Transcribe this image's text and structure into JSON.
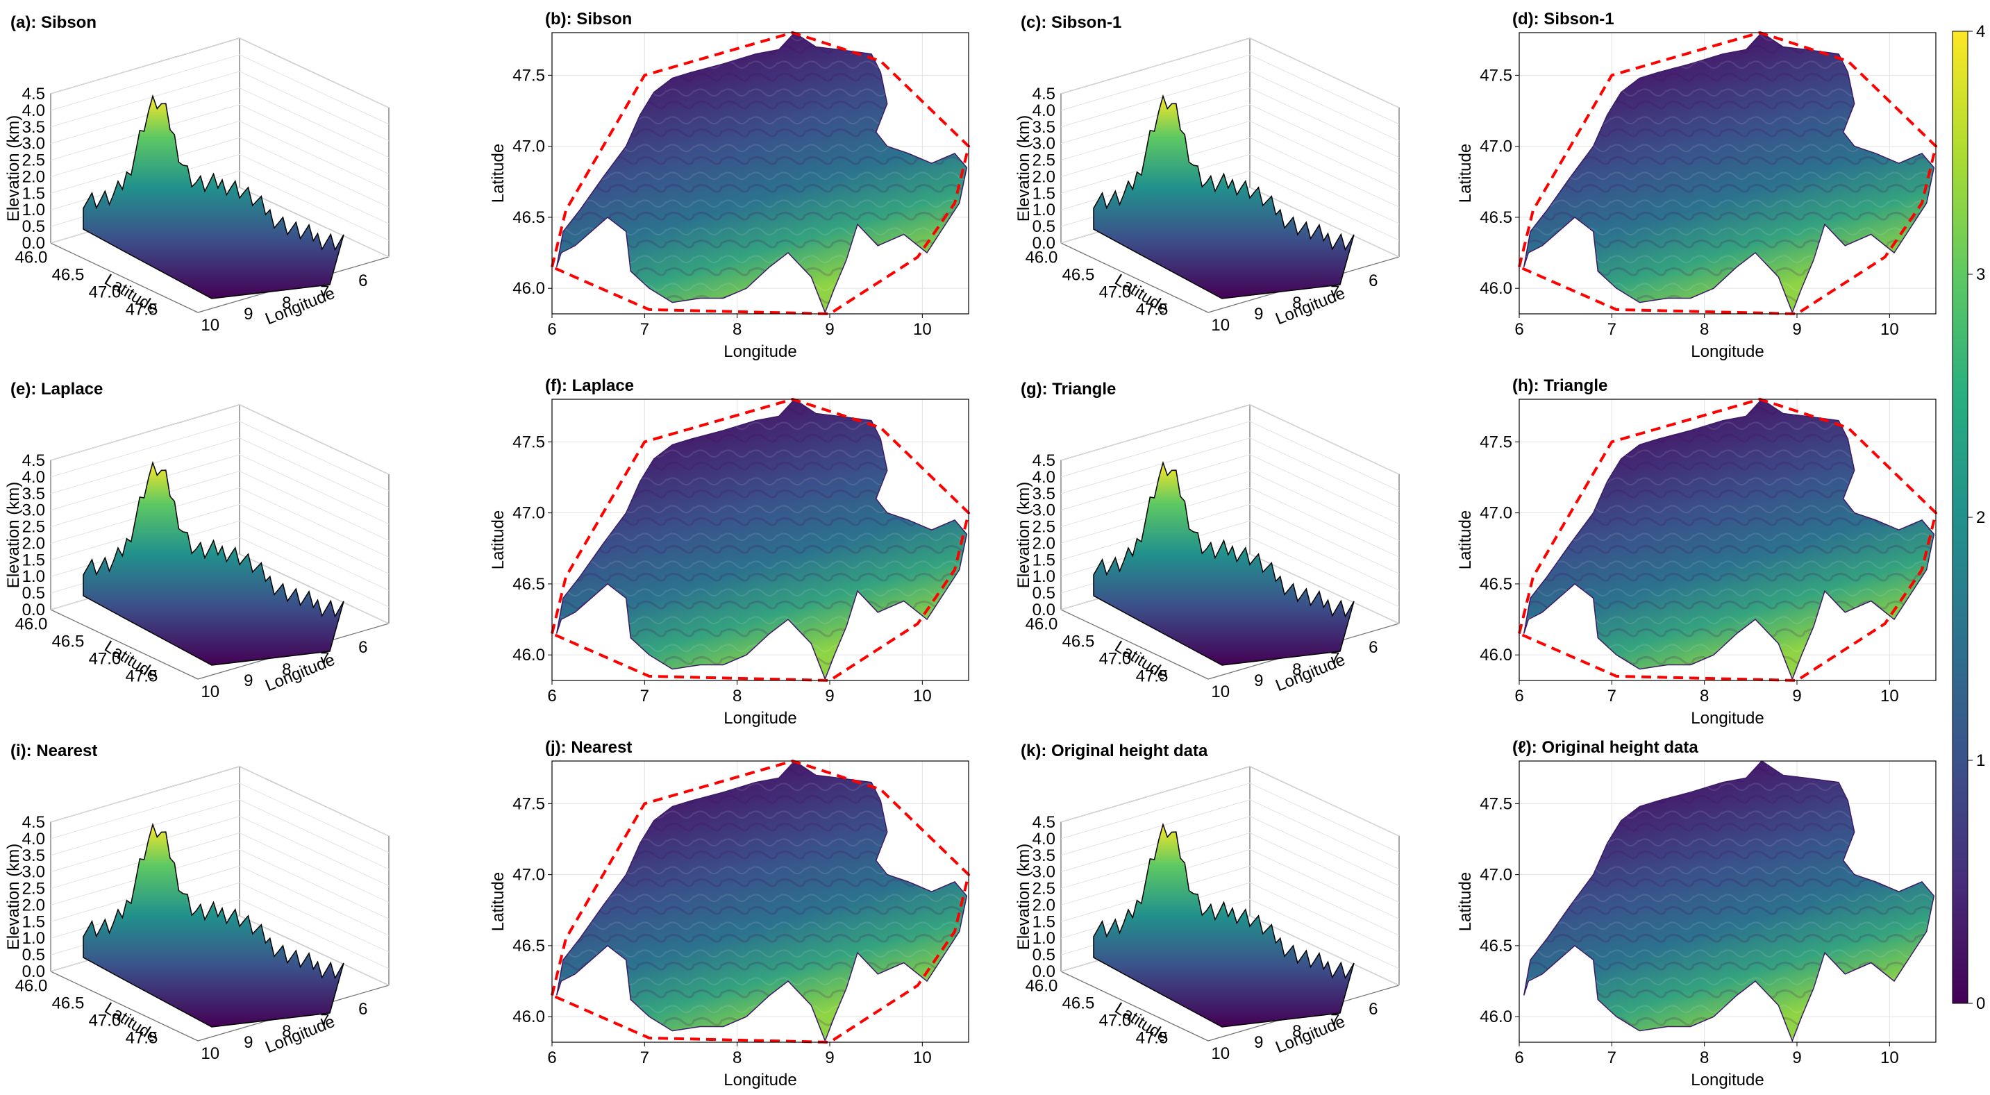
{
  "colors": {
    "viridis": [
      "#440154",
      "#472d7b",
      "#3b528b",
      "#2c728e",
      "#21918c",
      "#28ae80",
      "#5ec962",
      "#addc30",
      "#fde725"
    ],
    "hull": "#ff0000",
    "terrain_top": "#000000"
  },
  "chart_data": [
    {
      "type": "surface3d",
      "title": "(a): Sibson",
      "xlabel": "Longitude",
      "ylabel": "Latitude",
      "zlabel": "Elevation (km)",
      "xticks": [
        "6",
        "7",
        "8",
        "9",
        "10"
      ],
      "yticks": [
        "46.0",
        "46.5",
        "47.0",
        "47.5"
      ],
      "zticks": [
        "0.0",
        "0.5",
        "1.0",
        "1.5",
        "2.0",
        "2.5",
        "3.0",
        "3.5",
        "4.0",
        "4.5"
      ],
      "zlim": [
        0,
        4.5
      ]
    },
    {
      "type": "heatmap",
      "title": "(b): Sibson",
      "xlabel": "Longitude",
      "ylabel": "Latitude",
      "xticks": [
        "6",
        "7",
        "8",
        "9",
        "10"
      ],
      "yticks": [
        "46.0",
        "46.5",
        "47.0",
        "47.5"
      ],
      "xlim": [
        6,
        10.5
      ],
      "ylim": [
        45.82,
        47.8
      ],
      "hull": true
    },
    {
      "type": "surface3d",
      "title": "(c): Sibson-1",
      "xlabel": "Longitude",
      "ylabel": "Latitude",
      "zlabel": "Elevation (km)",
      "xticks": [
        "6",
        "7",
        "8",
        "9",
        "10"
      ],
      "yticks": [
        "46.0",
        "46.5",
        "47.0",
        "47.5"
      ],
      "zticks": [
        "0.0",
        "0.5",
        "1.0",
        "1.5",
        "2.0",
        "2.5",
        "3.0",
        "3.5",
        "4.0",
        "4.5"
      ],
      "zlim": [
        0,
        4.5
      ]
    },
    {
      "type": "heatmap",
      "title": "(d): Sibson-1",
      "xlabel": "Longitude",
      "ylabel": "Latitude",
      "xticks": [
        "6",
        "7",
        "8",
        "9",
        "10"
      ],
      "yticks": [
        "46.0",
        "46.5",
        "47.0",
        "47.5"
      ],
      "xlim": [
        6,
        10.5
      ],
      "ylim": [
        45.82,
        47.8
      ],
      "hull": true
    },
    {
      "type": "surface3d",
      "title": "(e): Laplace",
      "xlabel": "Longitude",
      "ylabel": "Latitude",
      "zlabel": "Elevation (km)",
      "xticks": [
        "6",
        "7",
        "8",
        "9",
        "10"
      ],
      "yticks": [
        "46.0",
        "46.5",
        "47.0",
        "47.5"
      ],
      "zticks": [
        "0.0",
        "0.5",
        "1.0",
        "1.5",
        "2.0",
        "2.5",
        "3.0",
        "3.5",
        "4.0",
        "4.5"
      ],
      "zlim": [
        0,
        4.5
      ]
    },
    {
      "type": "heatmap",
      "title": "(f): Laplace",
      "xlabel": "Longitude",
      "ylabel": "Latitude",
      "xticks": [
        "6",
        "7",
        "8",
        "9",
        "10"
      ],
      "yticks": [
        "46.0",
        "46.5",
        "47.0",
        "47.5"
      ],
      "xlim": [
        6,
        10.5
      ],
      "ylim": [
        45.82,
        47.8
      ],
      "hull": true
    },
    {
      "type": "surface3d",
      "title": "(g): Triangle",
      "xlabel": "Longitude",
      "ylabel": "Latitude",
      "zlabel": "Elevation (km)",
      "xticks": [
        "6",
        "7",
        "8",
        "9",
        "10"
      ],
      "yticks": [
        "46.0",
        "46.5",
        "47.0",
        "47.5"
      ],
      "zticks": [
        "0.0",
        "0.5",
        "1.0",
        "1.5",
        "2.0",
        "2.5",
        "3.0",
        "3.5",
        "4.0",
        "4.5"
      ],
      "zlim": [
        0,
        4.5
      ]
    },
    {
      "type": "heatmap",
      "title": "(h): Triangle",
      "xlabel": "Longitude",
      "ylabel": "Latitude",
      "xticks": [
        "6",
        "7",
        "8",
        "9",
        "10"
      ],
      "yticks": [
        "46.0",
        "46.5",
        "47.0",
        "47.5"
      ],
      "xlim": [
        6,
        10.5
      ],
      "ylim": [
        45.82,
        47.8
      ],
      "hull": true
    },
    {
      "type": "surface3d",
      "title": "(i): Nearest",
      "xlabel": "Longitude",
      "ylabel": "Latitude",
      "zlabel": "Elevation (km)",
      "xticks": [
        "6",
        "7",
        "8",
        "9",
        "10"
      ],
      "yticks": [
        "46.0",
        "46.5",
        "47.0",
        "47.5"
      ],
      "zticks": [
        "0.0",
        "0.5",
        "1.0",
        "1.5",
        "2.0",
        "2.5",
        "3.0",
        "3.5",
        "4.0",
        "4.5"
      ],
      "zlim": [
        0,
        4.5
      ]
    },
    {
      "type": "heatmap",
      "title": "(j): Nearest",
      "xlabel": "Longitude",
      "ylabel": "Latitude",
      "xticks": [
        "6",
        "7",
        "8",
        "9",
        "10"
      ],
      "yticks": [
        "46.0",
        "46.5",
        "47.0",
        "47.5"
      ],
      "xlim": [
        6,
        10.5
      ],
      "ylim": [
        45.82,
        47.8
      ],
      "hull": true
    },
    {
      "type": "surface3d",
      "title": "(k): Original height data",
      "xlabel": "Longitude",
      "ylabel": "Latitude",
      "zlabel": "Elevation (km)",
      "xticks": [
        "6",
        "7",
        "8",
        "9",
        "10"
      ],
      "yticks": [
        "46.0",
        "46.5",
        "47.0",
        "47.5"
      ],
      "zticks": [
        "0.0",
        "0.5",
        "1.0",
        "1.5",
        "2.0",
        "2.5",
        "3.0",
        "3.5",
        "4.0",
        "4.5"
      ],
      "zlim": [
        0,
        4.5
      ]
    },
    {
      "type": "heatmap",
      "title": "(ℓ): Original height data",
      "xlabel": "Longitude",
      "ylabel": "Latitude",
      "xticks": [
        "6",
        "7",
        "8",
        "9",
        "10"
      ],
      "yticks": [
        "46.0",
        "46.5",
        "47.0",
        "47.5"
      ],
      "xlim": [
        6,
        10.5
      ],
      "ylim": [
        45.82,
        47.8
      ],
      "hull": false
    }
  ],
  "colorbar": {
    "ticks": [
      "0",
      "1",
      "2",
      "3",
      "4"
    ],
    "range": [
      0,
      4
    ]
  }
}
